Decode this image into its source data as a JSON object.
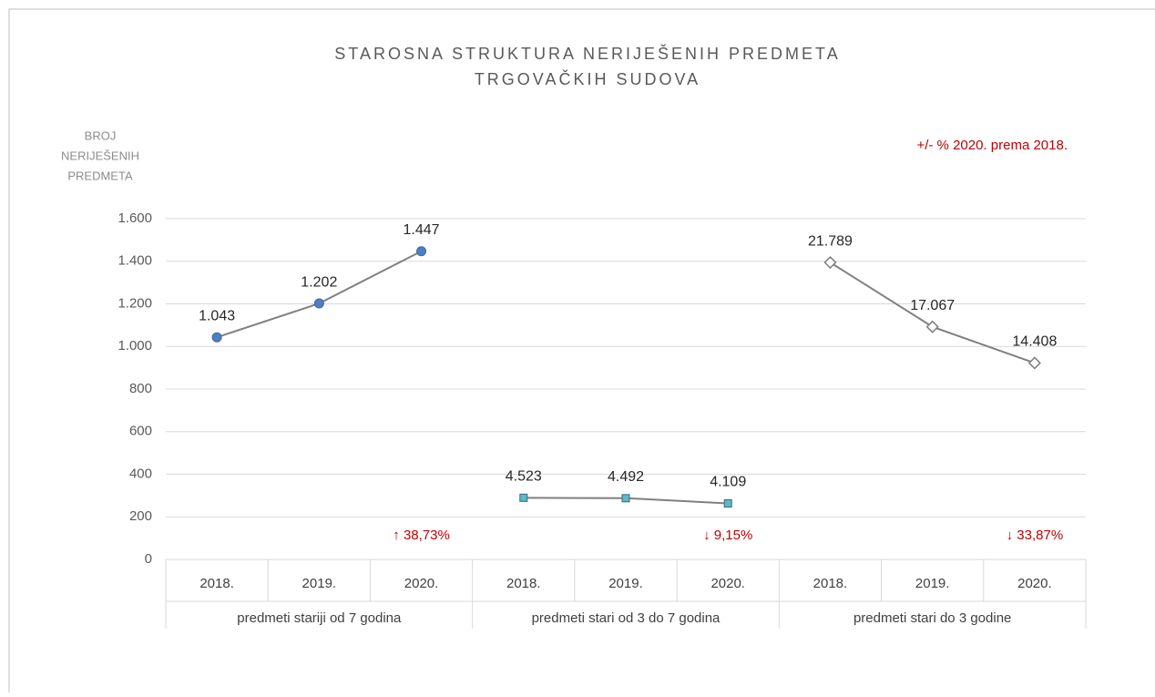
{
  "chart_data": {
    "type": "line",
    "title": [
      "STAROSNA STRUKTURA NERIJEŠENIH PREDMETA",
      "TRGOVAČKIH SUDOVA"
    ],
    "ylabel": [
      "BROJ",
      "NERIJEŠENIH",
      "PREDMETA"
    ],
    "note": "+/- % 2020. prema 2018.",
    "categories": [
      "2018.",
      "2019.",
      "2020.",
      "2018.",
      "2019.",
      "2020.",
      "2018.",
      "2019.",
      "2020."
    ],
    "groups": [
      "predmeti stariji od 7 godina",
      "predmeti stari od 3 do 7 godina",
      "predmeti stari do 3 godine"
    ],
    "annotations": [
      "↑ 38,73%",
      "↓ 9,15%",
      "↓ 33,87%"
    ],
    "ylim": [
      0,
      1600
    ],
    "yticks": [
      0,
      200,
      400,
      600,
      800,
      {
        "value": 1000,
        "label": "1.000"
      },
      {
        "value": 1200,
        "label": "1.200"
      },
      {
        "value": 1400,
        "label": "1.400"
      },
      {
        "value": 1600,
        "label": "1.600"
      }
    ],
    "y2lim": [
      0,
      25000
    ],
    "grid": true,
    "series": [
      {
        "color": "#808080",
        "marker": "circle",
        "marker_color": "#4f7fc0",
        "values": [
          1043,
          1202,
          1447,
          null,
          null,
          null,
          null,
          null,
          null
        ],
        "value_labels": [
          "1.043",
          "1.202",
          "1.447",
          null,
          null,
          null,
          null,
          null,
          null
        ]
      },
      {
        "color": "#808080",
        "marker": "square",
        "marker_color": "#5bb8c9",
        "axis": "y2",
        "values": [
          null,
          null,
          null,
          4523,
          4492,
          4109,
          null,
          null,
          null
        ],
        "value_labels": [
          null,
          null,
          null,
          "4.523",
          "4.492",
          "4.109",
          null,
          null,
          null
        ]
      },
      {
        "color": "#808080",
        "marker": "diamond",
        "marker_color": "#ffffff",
        "axis": "y2",
        "values": [
          null,
          null,
          null,
          null,
          null,
          null,
          21789,
          17067,
          14408
        ],
        "value_labels": [
          null,
          null,
          null,
          null,
          null,
          null,
          "21.789",
          "17.067",
          "14.408"
        ]
      }
    ]
  }
}
